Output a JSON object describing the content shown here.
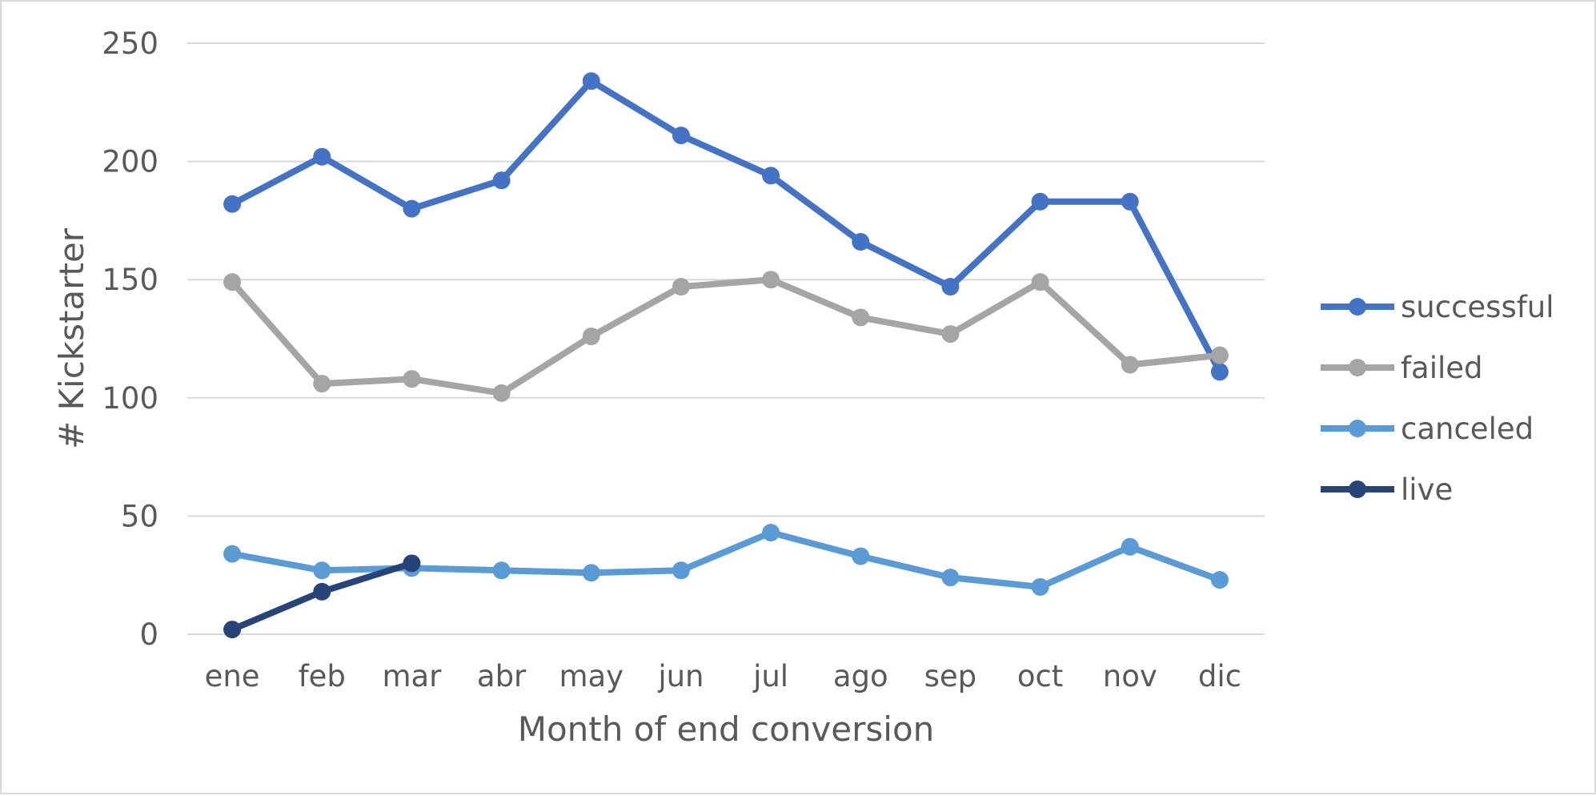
{
  "chart_data": {
    "type": "line",
    "title": "",
    "xlabel": "Month of end conversion",
    "ylabel": "# Kickstarter",
    "ylim": [
      0,
      250
    ],
    "yticks": [
      0,
      50,
      100,
      150,
      200,
      250
    ],
    "grid": true,
    "legend_position": "right",
    "categories": [
      "ene",
      "feb",
      "mar",
      "abr",
      "may",
      "jun",
      "jul",
      "ago",
      "sep",
      "oct",
      "nov",
      "dic"
    ],
    "series": [
      {
        "name": "successful",
        "color": "#4472c4",
        "values": [
          182,
          202,
          180,
          192,
          234,
          211,
          194,
          166,
          147,
          183,
          183,
          111
        ]
      },
      {
        "name": "failed",
        "color": "#a5a5a5",
        "values": [
          149,
          106,
          108,
          102,
          126,
          147,
          150,
          134,
          127,
          149,
          114,
          118
        ]
      },
      {
        "name": "canceled",
        "color": "#5b9bd5",
        "values": [
          34,
          27,
          28,
          27,
          26,
          27,
          43,
          33,
          24,
          20,
          37,
          23
        ]
      },
      {
        "name": "live",
        "color": "#264478",
        "values": [
          2,
          18,
          30,
          null,
          null,
          null,
          null,
          null,
          null,
          null,
          null,
          null
        ]
      }
    ]
  }
}
